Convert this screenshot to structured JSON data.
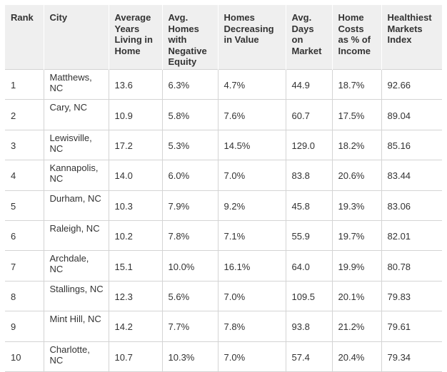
{
  "table": {
    "headers": [
      "Rank",
      "City",
      "Average Years Living in Home",
      "Avg. Homes with Negative Equity",
      "Homes Decreasing in Value",
      "Avg. Days on Market",
      "Home Costs as % of Income",
      "Healthiest Markets Index"
    ],
    "rows": [
      [
        "1",
        "Matthews, NC",
        "13.6",
        "6.3%",
        "4.7%",
        "44.9",
        "18.7%",
        "92.66"
      ],
      [
        "2",
        "Cary, NC",
        "10.9",
        "5.8%",
        "7.6%",
        "60.7",
        "17.5%",
        "89.04"
      ],
      [
        "3",
        "Lewisville, NC",
        "17.2",
        "5.3%",
        "14.5%",
        "129.0",
        "18.2%",
        "85.16"
      ],
      [
        "4",
        "Kannapolis, NC",
        "14.0",
        "6.0%",
        "7.0%",
        "83.8",
        "20.6%",
        "83.44"
      ],
      [
        "5",
        "Durham, NC",
        "10.3",
        "7.9%",
        "9.2%",
        "45.8",
        "19.3%",
        "83.06"
      ],
      [
        "6",
        "Raleigh, NC",
        "10.2",
        "7.8%",
        "7.1%",
        "55.9",
        "19.7%",
        "82.01"
      ],
      [
        "7",
        "Archdale, NC",
        "15.1",
        "10.0%",
        "16.1%",
        "64.0",
        "19.9%",
        "80.78"
      ],
      [
        "8",
        "Stallings, NC",
        "12.3",
        "5.6%",
        "7.0%",
        "109.5",
        "20.1%",
        "79.83"
      ],
      [
        "9",
        "Mint Hill, NC",
        "14.2",
        "7.7%",
        "7.8%",
        "93.8",
        "21.2%",
        "79.61"
      ],
      [
        "10",
        "Charlotte, NC",
        "10.7",
        "10.3%",
        "7.0%",
        "57.4",
        "20.4%",
        "79.34"
      ]
    ]
  },
  "colors": {
    "header_background": "#efefef",
    "text": "#333333",
    "grid_line": "#d4d4d4"
  }
}
